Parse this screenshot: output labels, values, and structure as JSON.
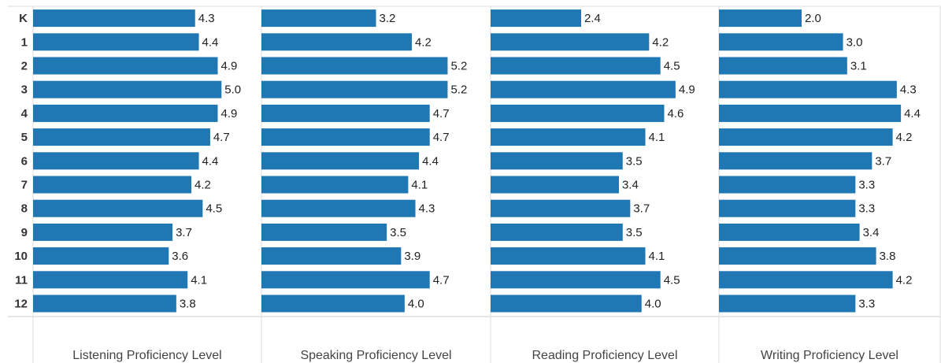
{
  "chart_data": {
    "type": "bar",
    "categories": [
      "K",
      "1",
      "2",
      "3",
      "4",
      "5",
      "6",
      "7",
      "8",
      "9",
      "10",
      "11",
      "12"
    ],
    "color": "#1f77b4",
    "series": [
      {
        "name": "Listening Proficiency Level",
        "xlim": [
          0,
          6.06
        ],
        "values": [
          4.3,
          4.4,
          4.9,
          5.0,
          4.9,
          4.7,
          4.4,
          4.2,
          4.5,
          3.7,
          3.6,
          4.1,
          3.8
        ],
        "value_labels": [
          "4.3",
          "4.4",
          "4.9",
          "5.0",
          "4.9",
          "4.7",
          "4.4",
          "4.2",
          "4.5",
          "3.7",
          "3.6",
          "4.1",
          "3.8"
        ]
      },
      {
        "name": "Speaking Proficiency Level",
        "xlim": [
          0,
          6.4
        ],
        "values": [
          3.2,
          4.2,
          5.2,
          5.2,
          4.7,
          4.7,
          4.4,
          4.1,
          4.3,
          3.5,
          3.9,
          4.7,
          4.0
        ],
        "value_labels": [
          "3.2",
          "4.2",
          "5.2",
          "5.2",
          "4.7",
          "4.7",
          "4.4",
          "4.1",
          "4.3",
          "3.5",
          "3.9",
          "4.7",
          "4.0"
        ]
      },
      {
        "name": "Reading Proficiency Level",
        "xlim": [
          0,
          6.05
        ],
        "values": [
          2.4,
          4.2,
          4.5,
          4.9,
          4.6,
          4.1,
          3.5,
          3.4,
          3.7,
          3.5,
          4.1,
          4.5,
          4.0
        ],
        "value_labels": [
          "2.4",
          "4.2",
          "4.5",
          "4.9",
          "4.6",
          "4.1",
          "3.5",
          "3.4",
          "3.7",
          "3.5",
          "4.1",
          "4.5",
          "4.0"
        ]
      },
      {
        "name": "Writing Proficiency Level",
        "xlim": [
          0,
          5.35
        ],
        "values": [
          2.0,
          3.0,
          3.1,
          4.3,
          4.4,
          4.2,
          3.7,
          3.3,
          3.3,
          3.4,
          3.8,
          4.2,
          3.3
        ],
        "value_labels": [
          "2.0",
          "3.0",
          "3.1",
          "4.3",
          "4.4",
          "4.2",
          "3.7",
          "3.3",
          "3.3",
          "3.4",
          "3.8",
          "4.2",
          "3.3"
        ]
      }
    ]
  }
}
